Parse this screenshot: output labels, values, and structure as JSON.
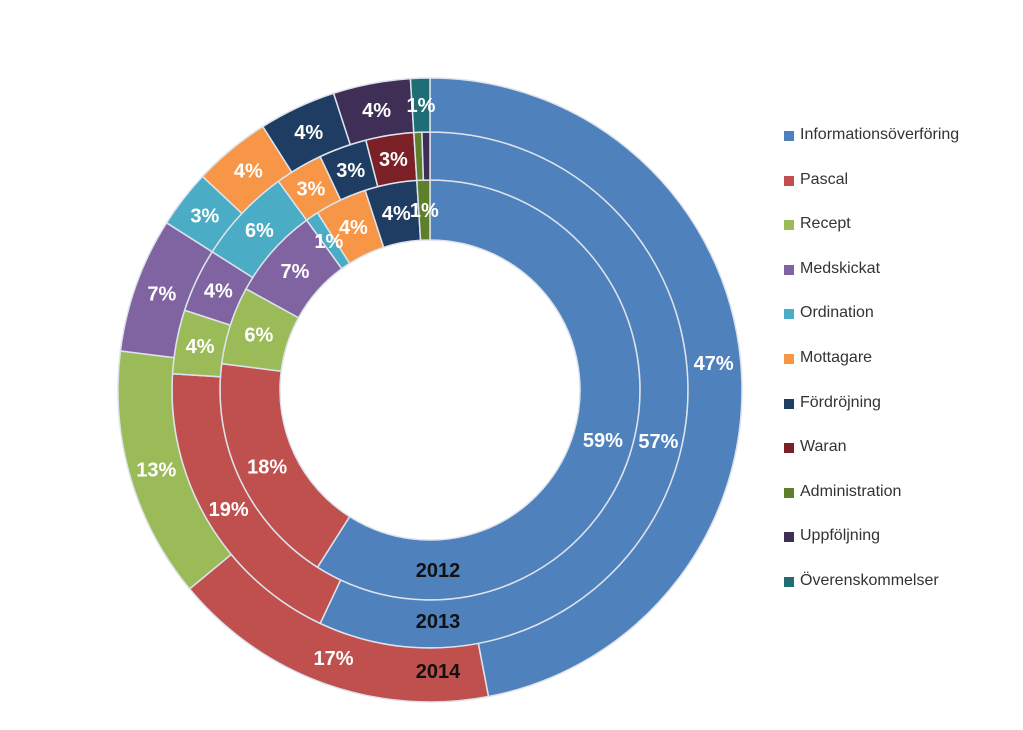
{
  "chart_data": {
    "type": "donut",
    "title": "",
    "categories": [
      "Informationsöverföring",
      "Pascal",
      "Recept",
      "Medskickat",
      "Ordination",
      "Mottagare",
      "Fördröjning",
      "Waran",
      "Administration",
      "Uppföljning",
      "Överenskommelser"
    ],
    "colors": [
      "#4F81BD",
      "#C0504D",
      "#9BBB59",
      "#8064A2",
      "#4BACC6",
      "#F79646",
      "#1F3D63",
      "#7B2026",
      "#5E7F2C",
      "#3F2E55",
      "#1F6E75"
    ],
    "series": [
      {
        "name": "2012",
        "values": [
          59,
          18,
          6,
          7,
          1,
          4,
          4,
          0,
          1,
          0,
          0
        ],
        "labels": [
          "59%",
          "18%",
          "6%",
          "7%",
          "1%",
          "4%",
          "4%",
          "",
          "1%",
          "",
          ""
        ]
      },
      {
        "name": "2013",
        "values": [
          57,
          19,
          4,
          4,
          6,
          3,
          3,
          3,
          0.5,
          0.5,
          0
        ],
        "labels": [
          "57%",
          "19%",
          "4%",
          "4%",
          "6%",
          "3%",
          "3%",
          "3%",
          "",
          "",
          ""
        ]
      },
      {
        "name": "2014",
        "values": [
          47,
          17,
          13,
          7,
          3,
          4,
          4,
          0,
          0,
          4,
          1
        ],
        "labels": [
          "47%",
          "17%",
          "13%",
          "7%",
          "3%",
          "4%",
          "4%",
          "",
          "",
          "4%",
          "1%"
        ]
      }
    ],
    "legend_position": "right"
  }
}
